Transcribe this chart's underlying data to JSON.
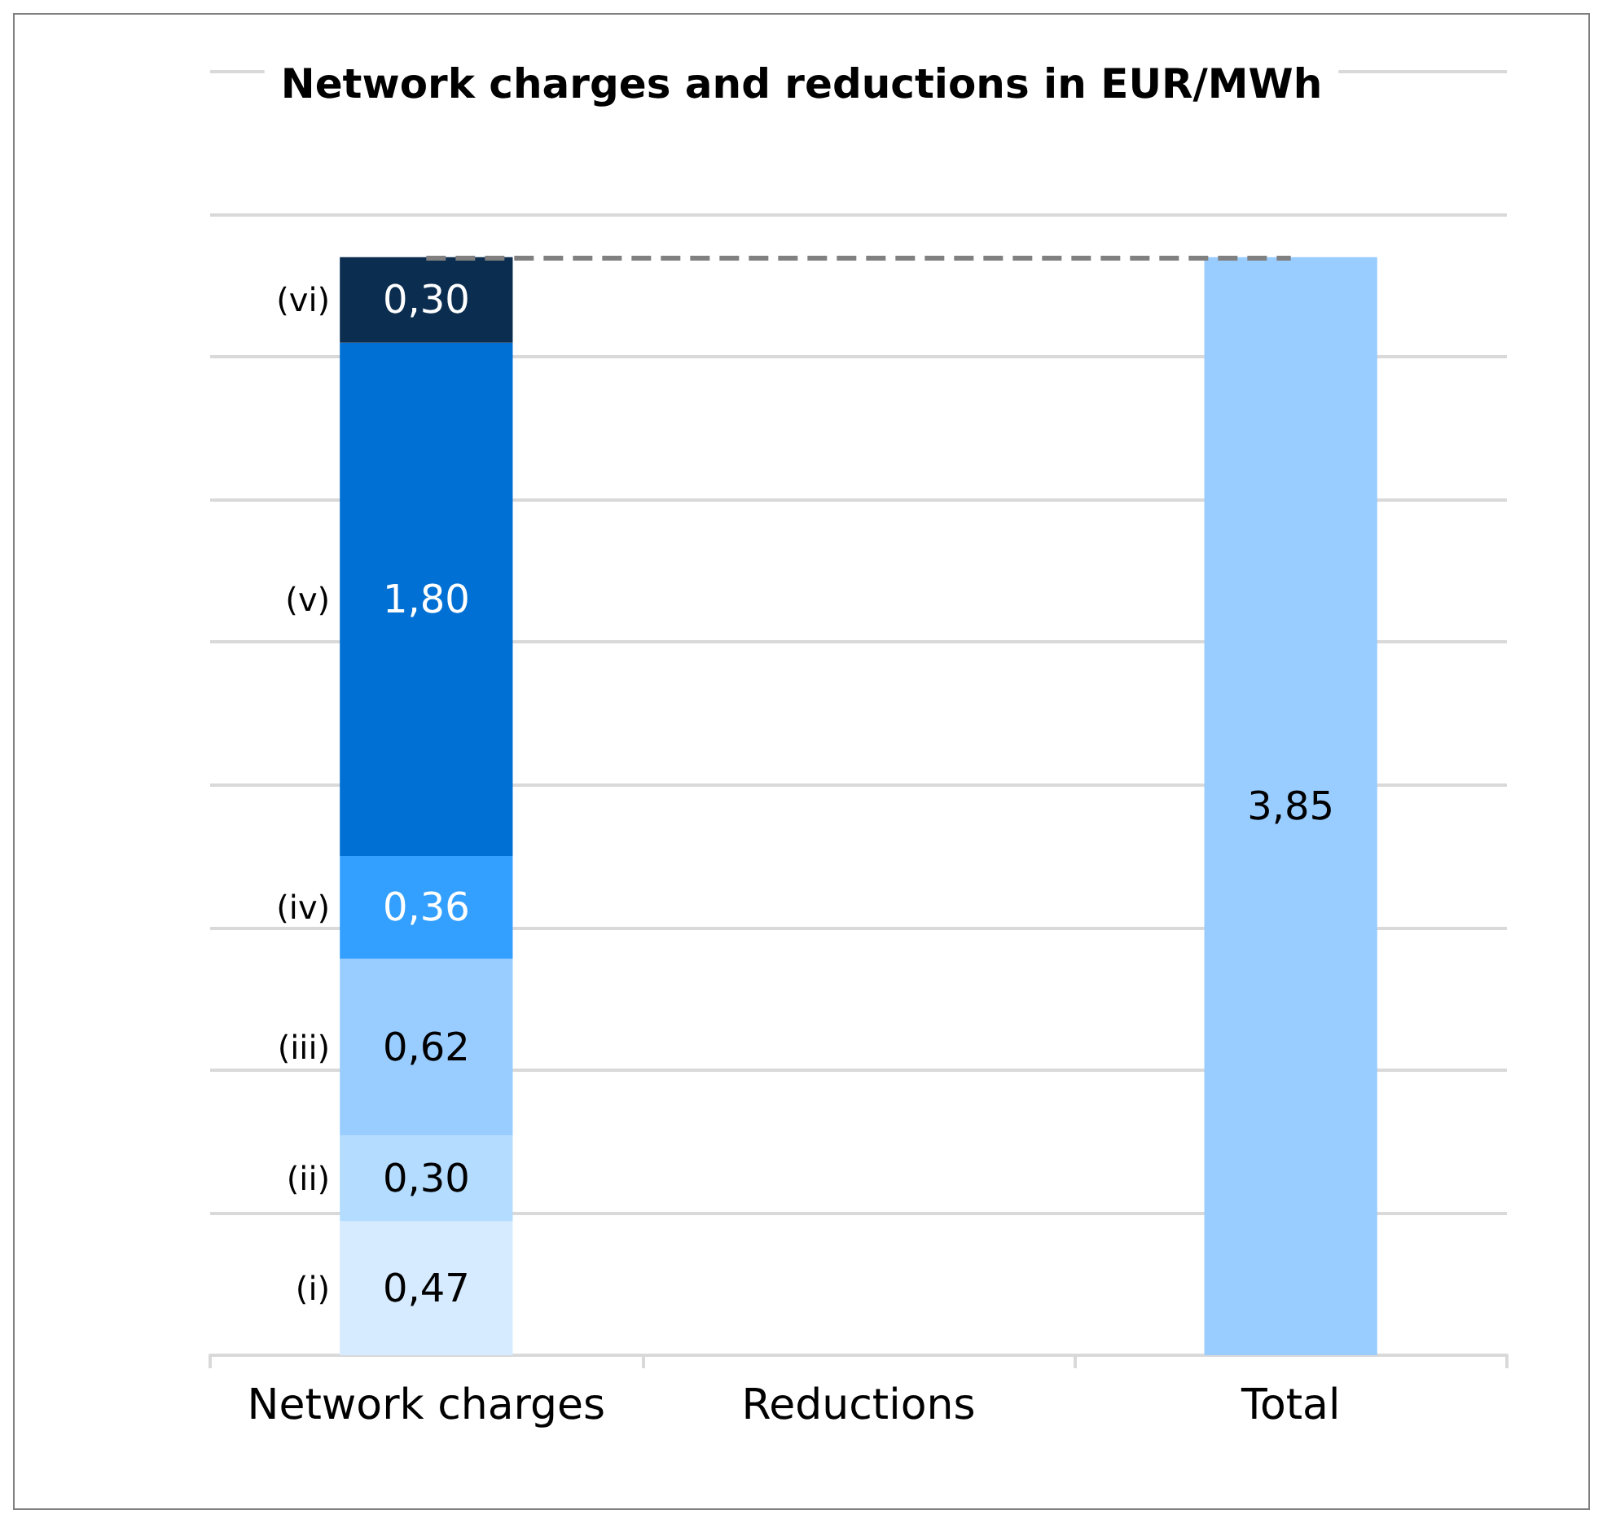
{
  "chart_data": {
    "type": "bar",
    "title": "Network charges and reductions in EUR/MWh",
    "categories": [
      "Network charges",
      "Reductions",
      "Total"
    ],
    "stacked": true,
    "relative": false,
    "ylim": [
      0,
      4.5
    ],
    "yticks": [
      {
        "value": 0,
        "label": null
      },
      {
        "value": 0.5,
        "label": null
      },
      {
        "value": 1,
        "label": null
      },
      {
        "value": 1.5,
        "label": null
      },
      {
        "value": 2,
        "label": null
      },
      {
        "value": 2.5,
        "label": null
      },
      {
        "value": 3,
        "label": null
      },
      {
        "value": 3.5,
        "label": null
      },
      {
        "value": 4,
        "label": null
      },
      {
        "value": 4.5,
        "label": null
      }
    ],
    "tick_labels": "x",
    "grid": "y",
    "legend": false,
    "series": [
      {
        "name": "(i)",
        "color": "#d6ebff",
        "values": [
          0.47,
          null,
          null
        ],
        "value_labels": [
          "0,47",
          null,
          null
        ]
      },
      {
        "name": "(ii)",
        "color": "#b3dcff",
        "values": [
          0.3,
          null,
          null
        ],
        "value_labels": [
          "0,30",
          null,
          null
        ]
      },
      {
        "name": "(iii)",
        "color": "#99ccff",
        "values": [
          0.62,
          null,
          null
        ],
        "value_labels": [
          "0,62",
          null,
          null
        ]
      },
      {
        "name": "(iv)",
        "color": "#33a0ff",
        "values": [
          0.36,
          null,
          null
        ],
        "value_labels": [
          "0,36",
          null,
          null
        ]
      },
      {
        "name": "(v)",
        "color": "#0070d4",
        "values": [
          1.8,
          null,
          null
        ],
        "value_labels": [
          "1,80",
          null,
          null
        ]
      },
      {
        "name": "(vi)",
        "color": "#0a2d50",
        "values": [
          0.3,
          null,
          null
        ],
        "value_labels": [
          "0,30",
          null,
          null
        ]
      },
      {
        "color": "#99ccff",
        "values": [
          null,
          null,
          3.85
        ],
        "value_labels": [
          null,
          null,
          "3,85"
        ]
      }
    ],
    "ref_lines": [
      {
        "axis": "y",
        "value": 3.85,
        "color": "#808080",
        "line_style": "dashed"
      }
    ]
  }
}
